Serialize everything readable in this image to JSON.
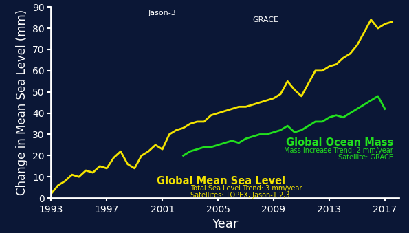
{
  "chart_data": {
    "type": "line",
    "x_label": "Year",
    "y_label": "Change in Mean Sea Level (mm)",
    "x": [
      1993.0,
      1993.5,
      1994.0,
      1994.5,
      1995.0,
      1995.5,
      1996.0,
      1996.5,
      1997.0,
      1997.5,
      1998.0,
      1998.5,
      1999.0,
      1999.5,
      2000.0,
      2000.5,
      2001.0,
      2001.5,
      2002.0,
      2002.5,
      2003.0,
      2003.5,
      2004.0,
      2004.5,
      2005.0,
      2005.5,
      2006.0,
      2006.5,
      2007.0,
      2007.5,
      2008.0,
      2008.5,
      2009.0,
      2009.5,
      2010.0,
      2010.5,
      2011.0,
      2011.5,
      2012.0,
      2012.5,
      2013.0,
      2013.5,
      2014.0,
      2014.5,
      2015.0,
      2015.5,
      2016.0,
      2016.5,
      2017.0,
      2017.5
    ],
    "series": [
      {
        "name": "Global Mean Sea Level",
        "color": "#f5e400",
        "values": [
          2,
          6,
          8,
          11,
          10,
          13,
          12,
          15,
          14,
          19,
          22,
          16,
          14,
          20,
          22,
          25,
          23,
          30,
          32,
          33,
          35,
          36,
          36,
          39,
          40,
          41,
          42,
          43,
          43,
          44,
          45,
          46,
          47,
          49,
          55,
          51,
          48,
          54,
          60,
          60,
          62,
          63,
          66,
          68,
          72,
          78,
          84,
          80,
          82,
          83
        ]
      },
      {
        "name": "Global Ocean Mass",
        "color": "#22e01e",
        "values": [
          null,
          null,
          null,
          null,
          null,
          null,
          null,
          null,
          null,
          null,
          null,
          null,
          null,
          null,
          null,
          null,
          null,
          null,
          null,
          20,
          22,
          23,
          24,
          24,
          25,
          26,
          27,
          26,
          28,
          29,
          30,
          30,
          31,
          32,
          34,
          31,
          32,
          34,
          36,
          36,
          38,
          39,
          38,
          40,
          42,
          44,
          46,
          48,
          42,
          null
        ]
      }
    ],
    "annotations": [
      "Jason-3",
      "GRACE",
      "Total Sea Level Trend: 3 mm/year",
      "Satellites: TOPEX, Jason-1,2,3",
      "Mass Increase Trend: 2 mm/year",
      "Satellite: GRACE"
    ],
    "xlim": [
      1993,
      2018
    ],
    "xticks": [
      1993,
      1997,
      2001,
      2005,
      2009,
      2013,
      2017
    ],
    "ylim": [
      0,
      90
    ],
    "yticks": [
      0,
      10,
      20,
      30,
      40,
      50,
      60,
      70,
      80,
      90
    ],
    "grid": false
  }
}
